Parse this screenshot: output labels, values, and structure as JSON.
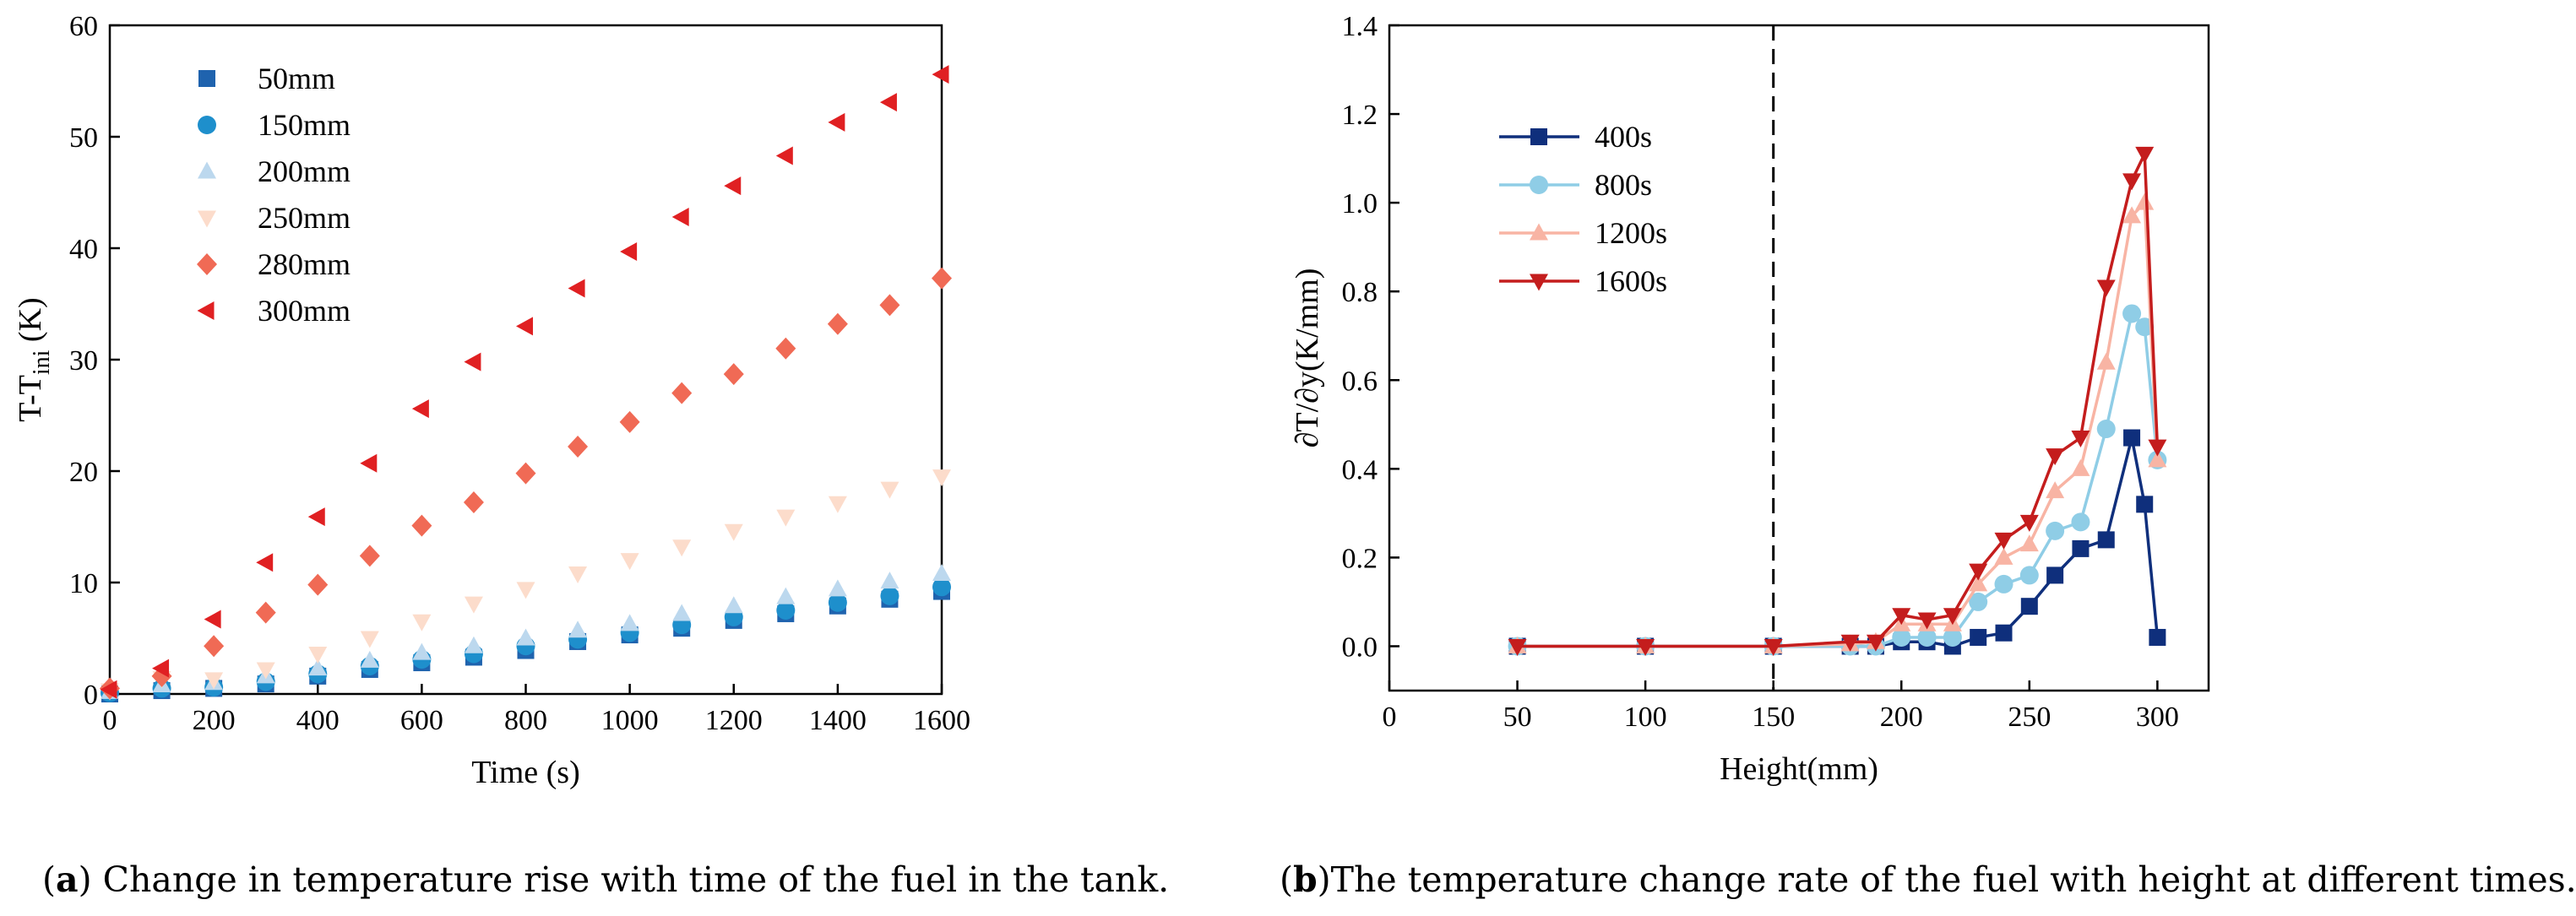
{
  "chart_data": [
    {
      "type": "scatter",
      "panel": "a",
      "xlabel": "Time (s)",
      "ylabel": {
        "main": "T-T",
        "sub": "ini",
        "unit": " (K)"
      },
      "xlim": [
        0,
        1600
      ],
      "ylim": [
        0,
        60
      ],
      "xticks": [
        0,
        200,
        400,
        600,
        800,
        1000,
        1200,
        1400,
        1600
      ],
      "yticks": [
        0,
        10,
        20,
        30,
        40,
        50,
        60
      ],
      "legend_position": "top-left",
      "x": [
        0,
        100,
        200,
        300,
        400,
        500,
        600,
        700,
        800,
        900,
        1000,
        1100,
        1200,
        1300,
        1400,
        1500,
        1600
      ],
      "series": [
        {
          "name": "50mm",
          "marker": "square",
          "color": "#1f63ae",
          "values": [
            0,
            0.3,
            0.5,
            0.9,
            1.6,
            2.2,
            2.8,
            3.3,
            3.9,
            4.7,
            5.3,
            5.9,
            6.6,
            7.2,
            7.9,
            8.5,
            9.2
          ]
        },
        {
          "name": "150mm",
          "marker": "circle",
          "color": "#1e8fcc",
          "values": [
            0.1,
            0.5,
            0.6,
            1.1,
            1.8,
            2.5,
            3.1,
            3.6,
            4.3,
            4.9,
            5.5,
            6.2,
            6.9,
            7.5,
            8.2,
            8.8,
            9.6
          ]
        },
        {
          "name": "200mm",
          "marker": "triangle-up",
          "color": "#bcd8ee",
          "values": [
            0.2,
            0.8,
            1.0,
            1.6,
            2.3,
            3.0,
            3.7,
            4.3,
            5.0,
            5.7,
            6.3,
            7.2,
            7.9,
            8.7,
            9.4,
            10.1,
            10.8
          ]
        },
        {
          "name": "250mm",
          "marker": "triangle-down",
          "color": "#fcdccb",
          "values": [
            0.3,
            1.4,
            1.3,
            2.2,
            3.6,
            5.0,
            6.5,
            8.1,
            9.4,
            10.8,
            12.0,
            13.2,
            14.6,
            15.9,
            17.1,
            18.4,
            19.5
          ]
        },
        {
          "name": "280mm",
          "marker": "diamond",
          "color": "#f06a55",
          "values": [
            0.5,
            1.6,
            4.3,
            7.3,
            9.8,
            12.4,
            15.1,
            17.2,
            19.8,
            22.2,
            24.4,
            27.0,
            28.7,
            31.0,
            33.2,
            34.9,
            37.3
          ]
        },
        {
          "name": "300mm",
          "marker": "triangle-left",
          "color": "#e02022",
          "values": [
            0.4,
            2.3,
            6.7,
            11.8,
            15.9,
            20.7,
            25.6,
            29.8,
            33.0,
            36.4,
            39.7,
            42.8,
            45.6,
            48.3,
            51.3,
            53.1,
            55.6
          ]
        }
      ]
    },
    {
      "type": "line",
      "panel": "b",
      "xlabel": "Height(mm)",
      "ylabel": "∂T/∂y(K/mm)",
      "xlim": [
        0,
        320
      ],
      "ylim": [
        -0.1,
        1.4
      ],
      "xticks": [
        0,
        50,
        100,
        150,
        200,
        250,
        300
      ],
      "yticks": [
        0.0,
        0.2,
        0.4,
        0.6,
        0.8,
        1.0,
        1.2,
        1.4
      ],
      "legend_position": "top-left",
      "reference_line": {
        "x": 150,
        "style": "dashed"
      },
      "x": [
        50,
        100,
        150,
        180,
        190,
        200,
        210,
        220,
        230,
        240,
        250,
        260,
        270,
        280,
        290,
        295,
        300
      ],
      "series": [
        {
          "name": "400s",
          "marker": "square",
          "color": "#0f2f7c",
          "values": [
            0,
            0,
            0,
            0,
            0,
            0.01,
            0.01,
            0,
            0.02,
            0.03,
            0.09,
            0.16,
            0.22,
            0.24,
            0.47,
            0.32,
            0.02
          ]
        },
        {
          "name": "800s",
          "marker": "circle",
          "color": "#8fcde6",
          "values": [
            0,
            0,
            0,
            0,
            0,
            0.02,
            0.02,
            0.02,
            0.1,
            0.14,
            0.16,
            0.26,
            0.28,
            0.49,
            0.75,
            0.72,
            0.42
          ]
        },
        {
          "name": "1200s",
          "marker": "triangle-up",
          "color": "#f8b4a4",
          "values": [
            0,
            0,
            0,
            0.005,
            0.01,
            0.05,
            0.05,
            0.05,
            0.14,
            0.2,
            0.23,
            0.35,
            0.4,
            0.64,
            0.97,
            1.0,
            0.42
          ]
        },
        {
          "name": "1600s",
          "marker": "triangle-down",
          "color": "#c41d1d",
          "values": [
            0,
            0,
            0,
            0.01,
            0.01,
            0.07,
            0.06,
            0.07,
            0.17,
            0.24,
            0.28,
            0.43,
            0.47,
            0.81,
            1.05,
            1.11,
            0.45
          ]
        }
      ]
    }
  ],
  "captions": {
    "a_label": "a",
    "a_text": " Change in temperature rise with time of the fuel in the tank.",
    "b_label": "b",
    "b_text": "The temperature change rate of the fuel with height at different times."
  }
}
